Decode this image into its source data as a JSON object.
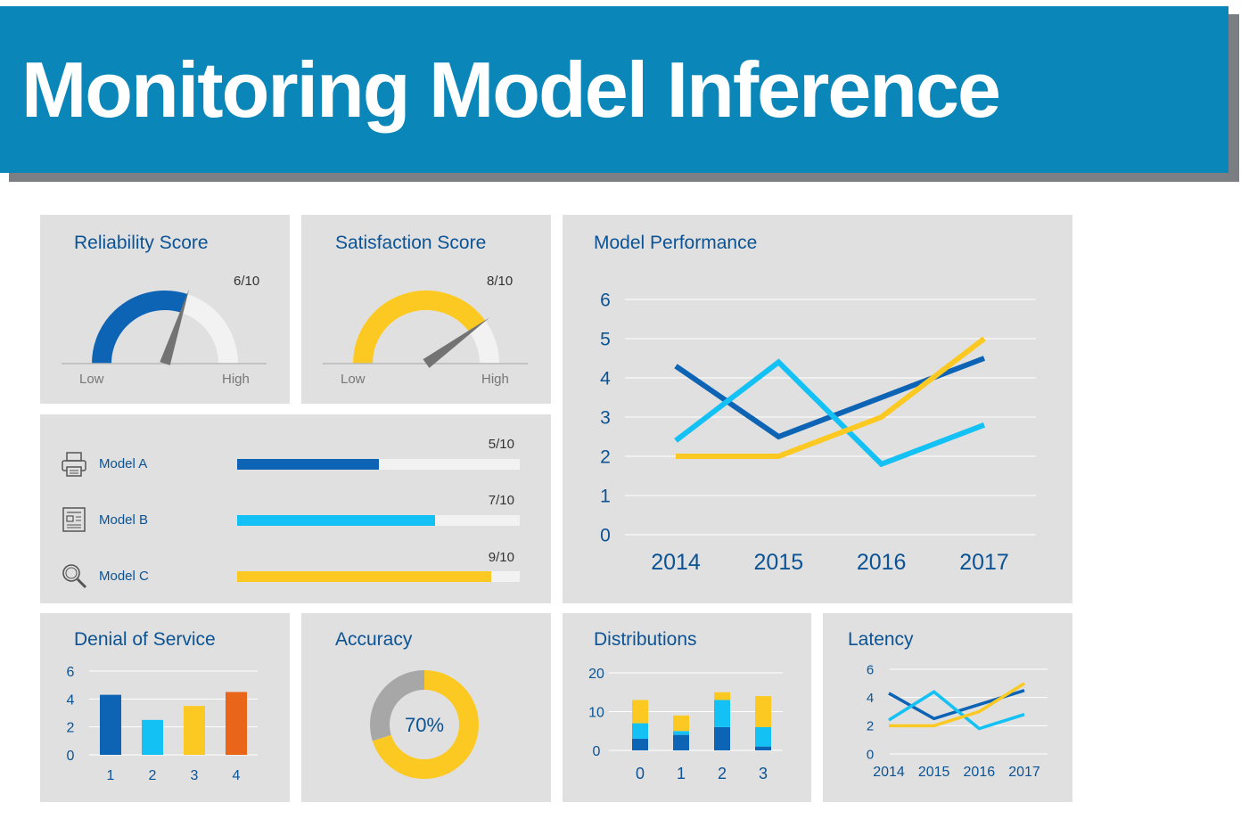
{
  "header": {
    "title": "Monitoring Model Inference"
  },
  "colors": {
    "navy": "#0d63b4",
    "cyan": "#14c1f5",
    "yellow": "#fcc923",
    "orange": "#e8651a",
    "gray": "#a7a7a7",
    "track": "#f2f2f2",
    "needle": "#737373"
  },
  "reliability": {
    "title": "Reliability Score",
    "value_label": "6/10",
    "low": "Low",
    "high": "High",
    "value": 6,
    "max": 10
  },
  "satisfaction": {
    "title": "Satisfaction Score",
    "value_label": "8/10",
    "low": "Low",
    "high": "High",
    "value": 8,
    "max": 10
  },
  "models": [
    {
      "label": "Model A",
      "icon": "printer-icon",
      "value_label": "5/10",
      "value": 5,
      "max": 10,
      "color": "#0d63b4"
    },
    {
      "label": "Model B",
      "icon": "newspaper-icon",
      "value_label": "7/10",
      "value": 7,
      "max": 10,
      "color": "#14c1f5"
    },
    {
      "label": "Model C",
      "icon": "magnifier-icon",
      "value_label": "9/10",
      "value": 9,
      "max": 10,
      "color": "#fcc923"
    }
  ],
  "chart_data": [
    {
      "id": "model-performance",
      "type": "line",
      "title": "Model Performance",
      "x": [
        "2014",
        "2015",
        "2016",
        "2017"
      ],
      "ylim": [
        0,
        6
      ],
      "yticks": [
        "0",
        "1",
        "2",
        "3",
        "4",
        "5",
        "6"
      ],
      "grid": true,
      "series": [
        {
          "color": "#0d63b4",
          "values": [
            4.3,
            2.5,
            3.5,
            4.5
          ]
        },
        {
          "color": "#14c1f5",
          "values": [
            2.4,
            4.4,
            1.8,
            2.8
          ]
        },
        {
          "color": "#fcc923",
          "values": [
            2.0,
            2.0,
            3.0,
            5.0
          ]
        }
      ]
    },
    {
      "id": "denial-of-service",
      "type": "bar",
      "title": "Denial of Service",
      "categories": [
        "1",
        "2",
        "3",
        "4"
      ],
      "values": [
        4.3,
        2.5,
        3.5,
        4.5
      ],
      "colors": [
        "#0d63b4",
        "#14c1f5",
        "#fcc923",
        "#e8651a"
      ],
      "ylim": [
        0,
        6
      ],
      "yticks": [
        "0",
        "2",
        "4",
        "6"
      ],
      "grid": true
    },
    {
      "id": "accuracy",
      "type": "pie",
      "title": "Accuracy",
      "center_label": "70%",
      "slices": [
        {
          "value": 70,
          "color": "#fcc923"
        },
        {
          "value": 30,
          "color": "#a7a7a7"
        }
      ]
    },
    {
      "id": "distributions",
      "type": "bar",
      "stacked": true,
      "title": "Distributions",
      "categories": [
        "0",
        "1",
        "2",
        "3"
      ],
      "ylim": [
        0,
        20
      ],
      "yticks": [
        "0",
        "10",
        "20"
      ],
      "grid": true,
      "series": [
        {
          "color": "#0d63b4",
          "values": [
            3,
            4,
            6,
            1
          ]
        },
        {
          "color": "#14c1f5",
          "values": [
            4,
            1,
            7,
            5
          ]
        },
        {
          "color": "#fcc923",
          "values": [
            6,
            4,
            2,
            8
          ]
        }
      ]
    },
    {
      "id": "latency",
      "type": "line",
      "title": "Latency",
      "x": [
        "2014",
        "2015",
        "2016",
        "2017"
      ],
      "ylim": [
        0,
        6
      ],
      "yticks": [
        "0",
        "2",
        "4",
        "6"
      ],
      "grid": true,
      "series": [
        {
          "color": "#0d63b4",
          "values": [
            4.3,
            2.5,
            3.5,
            4.5
          ]
        },
        {
          "color": "#14c1f5",
          "values": [
            2.4,
            4.4,
            1.8,
            2.8
          ]
        },
        {
          "color": "#fcc923",
          "values": [
            2.0,
            2.0,
            3.0,
            5.0
          ]
        }
      ]
    }
  ]
}
